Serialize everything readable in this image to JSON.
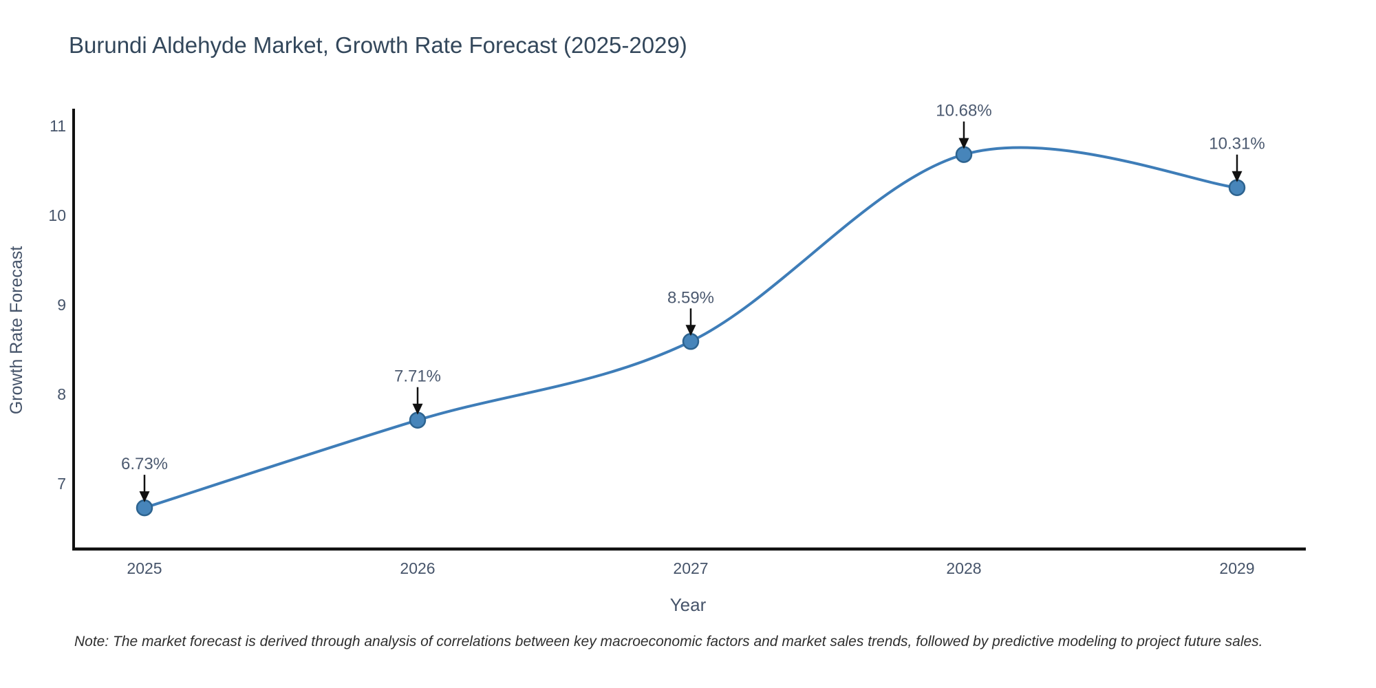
{
  "title": "Burundi Aldehyde Market, Growth Rate Forecast (2025-2029)",
  "note": "Note: The market forecast is derived through analysis of correlations between key macroeconomic factors and market sales trends, followed by predictive modeling to project future sales.",
  "colors": {
    "line": "#3e7db8",
    "marker_fill": "#4785ba",
    "marker_stroke": "#2d638f",
    "spine": "#111111",
    "arrow": "#111111",
    "title_text": "#33475b",
    "axis_text": "#46546a",
    "annotation_text": "#4c5a70",
    "note_text": "#2e2e2e"
  },
  "chart_data": {
    "type": "line",
    "title": "Burundi Aldehyde Market, Growth Rate Forecast (2025-2029)",
    "categories": [
      "2025",
      "2026",
      "2027",
      "2028",
      "2029"
    ],
    "x": [
      2025,
      2026,
      2027,
      2028,
      2029
    ],
    "values": [
      6.73,
      7.71,
      8.59,
      10.68,
      10.31
    ],
    "point_labels": [
      "6.73%",
      "7.71%",
      "8.59%",
      "10.68%",
      "10.31%"
    ],
    "xlabel": "Year",
    "ylabel": "Growth Rate Forecast",
    "yticks": [
      7,
      8,
      9,
      10,
      11
    ],
    "ylim": [
      6.27,
      11.19
    ],
    "line_shape": "spline",
    "grid": false,
    "legend": false,
    "annotation_note": "Note: The market forecast is derived through analysis of correlations between key macroeconomic factors and market sales trends, followed by predictive modeling to project future sales."
  }
}
